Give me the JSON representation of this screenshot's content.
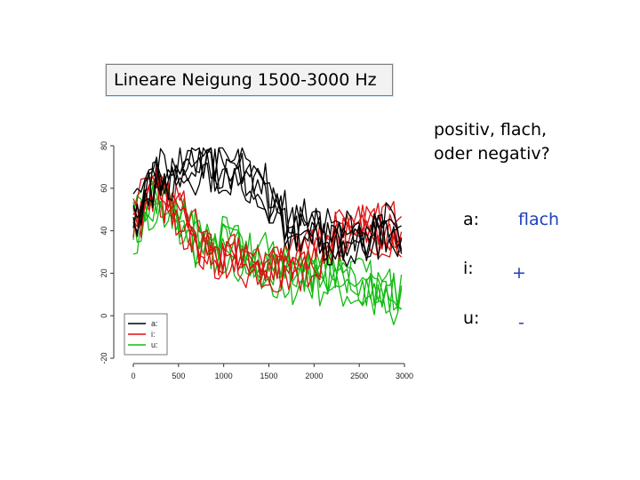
{
  "slide": {
    "title": "Lineare Neigung 1500-3000 Hz",
    "question_line1": "positiv, flach,",
    "question_line2": "oder negativ?",
    "rows": [
      {
        "label": "a:",
        "value": "flach"
      },
      {
        "label": "i:",
        "value": "+"
      },
      {
        "label": "u:",
        "value": "-"
      }
    ]
  },
  "chart_data": {
    "type": "line",
    "xlim": [
      0,
      3000
    ],
    "ylim": [
      -20,
      80
    ],
    "xticks": [
      "0",
      "500",
      "1000",
      "1500",
      "2000",
      "2500",
      "3000"
    ],
    "yticks": [
      "-20",
      "0",
      "20",
      "40",
      "60",
      "80"
    ],
    "legend": {
      "position": "bottom-left",
      "entries": [
        "a:",
        "i:",
        "u:"
      ]
    },
    "colors": {
      "a:": "#000000",
      "i:": "#dd1111",
      "u:": "#11bb11"
    },
    "grid": false,
    "series": [
      {
        "name": "a:",
        "x": [
          0,
          250,
          500,
          750,
          1000,
          1250,
          1500,
          1750,
          2000,
          2250,
          2500,
          2750,
          3000
        ],
        "values": [
          50,
          68,
          70,
          72,
          73,
          70,
          58,
          43,
          42,
          38,
          40,
          42,
          38
        ]
      },
      {
        "name": "i:",
        "x": [
          0,
          250,
          500,
          750,
          1000,
          1250,
          1500,
          1750,
          2000,
          2250,
          2500,
          2750,
          3000
        ],
        "values": [
          45,
          65,
          50,
          35,
          30,
          28,
          26,
          25,
          30,
          40,
          45,
          42,
          42
        ]
      },
      {
        "name": "u:",
        "x": [
          0,
          250,
          500,
          750,
          1000,
          1250,
          1500,
          1750,
          2000,
          2250,
          2500,
          2750,
          3000
        ],
        "values": [
          42,
          55,
          45,
          35,
          32,
          28,
          25,
          20,
          20,
          18,
          14,
          10,
          8
        ]
      }
    ]
  }
}
